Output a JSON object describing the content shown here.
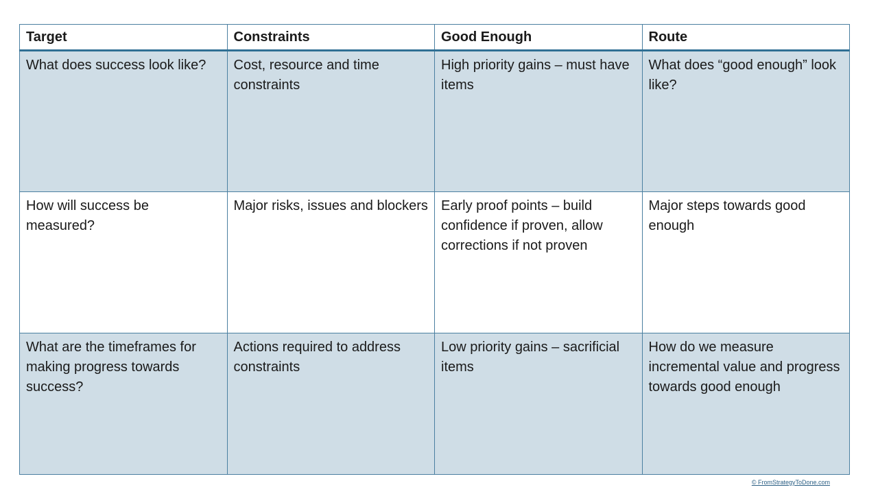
{
  "table": {
    "headers": [
      "Target",
      "Constraints",
      "Good Enough",
      "Route"
    ],
    "rows": [
      [
        "What does success look like?",
        "Cost, resource and time constraints",
        "High priority gains – must have items",
        "What does “good enough” look like?"
      ],
      [
        "How will success be measured?",
        "Major risks, issues and blockers",
        "Early proof points – build confidence if proven, allow corrections if not proven",
        "Major steps towards good enough"
      ],
      [
        "What are the timeframes for making progress towards success?",
        "Actions required to address constraints",
        "Low priority gains – sacrificial items",
        "How do we measure incremental value and progress towards good enough"
      ]
    ]
  },
  "footer": {
    "copyright": "© FromStrategyToDone.com"
  },
  "colors": {
    "shaded_row": "#cfdde6",
    "border": "#4a7fa0",
    "header_rule": "#2f6f94",
    "link": "#2b5f84"
  }
}
